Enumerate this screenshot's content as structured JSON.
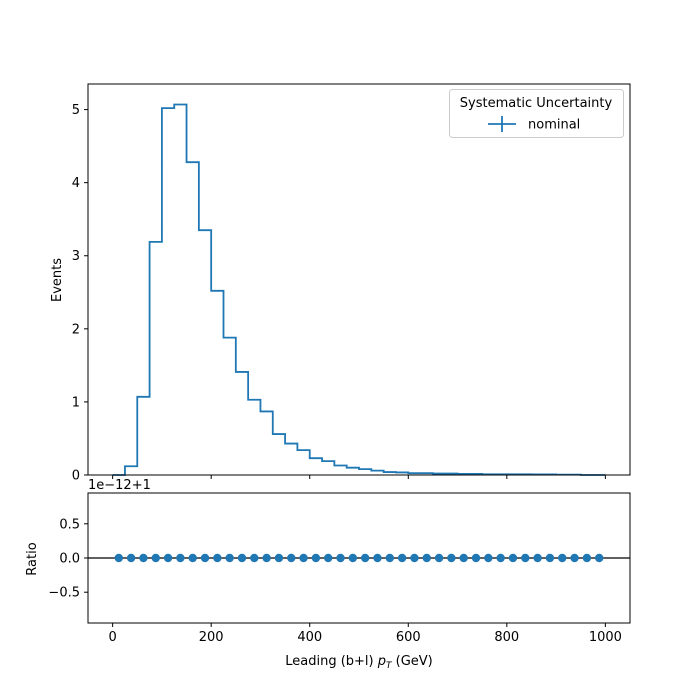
{
  "chart_data": [
    {
      "type": "line",
      "panel": "main",
      "ylabel": "Events",
      "ylim": [
        0,
        5.35
      ],
      "yticks": [
        "0",
        "1",
        "2",
        "3",
        "4",
        "5"
      ],
      "xlim": [
        -50,
        1050
      ],
      "legend": {
        "title": "Systematic Uncertainty",
        "entries": [
          "nominal"
        ],
        "placement": "top-right"
      },
      "series": [
        {
          "name": "nominal",
          "color": "#1f77b4",
          "drawstyle": "steps",
          "bin_edges": [
            0,
            25,
            50,
            75,
            100,
            125,
            150,
            175,
            200,
            225,
            250,
            275,
            300,
            325,
            350,
            375,
            400,
            425,
            450,
            475,
            500,
            525,
            550,
            575,
            600,
            650,
            700,
            750,
            800,
            850,
            900,
            950,
            1000
          ],
          "values": [
            0.0,
            0.12,
            1.07,
            3.19,
            5.02,
            5.07,
            4.28,
            3.35,
            2.52,
            1.88,
            1.41,
            1.03,
            0.87,
            0.56,
            0.43,
            0.34,
            0.23,
            0.19,
            0.13,
            0.1,
            0.08,
            0.06,
            0.04,
            0.035,
            0.025,
            0.02,
            0.015,
            0.01,
            0.01,
            0.008,
            0.005,
            0.0
          ]
        }
      ]
    },
    {
      "type": "scatter",
      "panel": "ratio",
      "ylabel": "Ratio",
      "xlabel_main": "Leading (b+l) ",
      "xlabel_sym": "p",
      "xlabel_sub": "T",
      "xlabel_unit": " (GeV)",
      "offset_text": "1e−12+1",
      "ylim": [
        -0.95,
        0.95
      ],
      "yticks": [
        "−0.5",
        "0.0",
        "0.5"
      ],
      "xlim": [
        -50,
        1050
      ],
      "xticks": [
        "0",
        "200",
        "400",
        "600",
        "800",
        "1000"
      ],
      "reference_line": 0.0,
      "series": [
        {
          "name": "nominal",
          "color": "#1f77b4",
          "x": [
            12.5,
            37.5,
            62.5,
            87.5,
            112.5,
            137.5,
            162.5,
            187.5,
            212.5,
            237.5,
            262.5,
            287.5,
            312.5,
            337.5,
            362.5,
            387.5,
            412.5,
            437.5,
            462.5,
            487.5,
            512.5,
            537.5,
            562.5,
            587.5,
            612.5,
            637.5,
            662.5,
            687.5,
            712.5,
            737.5,
            762.5,
            787.5,
            812.5,
            837.5,
            862.5,
            887.5,
            912.5,
            937.5,
            962.5,
            987.5
          ],
          "values": [
            0.0,
            0.0,
            0.0,
            0.0,
            0.0,
            0.0,
            0.0,
            0.0,
            0.0,
            0.0,
            0.0,
            0.0,
            0.0,
            0.0,
            0.0,
            0.0,
            0.0,
            0.0,
            0.0,
            0.0,
            0.0,
            0.0,
            0.0,
            0.0,
            0.0,
            0.0,
            0.0,
            0.0,
            0.0,
            0.0,
            0.0,
            0.0,
            0.0,
            0.0,
            0.0,
            0.0,
            0.0,
            0.0,
            0.0,
            0.0
          ]
        }
      ]
    }
  ]
}
